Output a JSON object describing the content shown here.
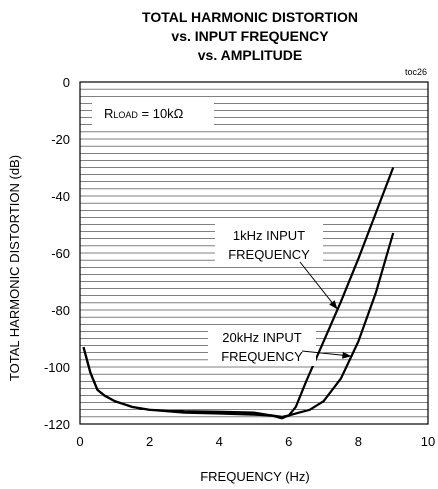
{
  "chart_data": {
    "type": "line",
    "title_lines": [
      "TOTAL HARMONIC DISTORTION",
      "vs. INPUT FREQUENCY",
      "vs. AMPLITUDE"
    ],
    "figure_id": "toc26",
    "xlabel": "FREQUENCY (Hz)",
    "ylabel": "TOTAL HARMONIC DISTORTION (dB)",
    "xlim": [
      0,
      10
    ],
    "ylim": [
      -120,
      0
    ],
    "x_ticks": [
      0,
      2,
      4,
      6,
      8,
      10
    ],
    "y_ticks": [
      0,
      -20,
      -40,
      -60,
      -80,
      -100,
      -120
    ],
    "grid": "horizontal",
    "legend_box": {
      "label_main": "R",
      "label_sub": "LOAD",
      "label_rest": " = 10kΩ"
    },
    "series": [
      {
        "name": "1kHz INPUT FREQUENCY",
        "x": [
          0.1,
          0.3,
          0.5,
          0.7,
          1.0,
          1.5,
          2.0,
          3.0,
          4.0,
          5.0,
          5.5,
          5.8,
          6.0,
          6.2,
          6.5,
          7.0,
          7.5,
          8.0,
          8.5,
          9.0
        ],
        "y": [
          -93,
          -102,
          -108,
          -110,
          -112,
          -114,
          -115,
          -115.5,
          -115.7,
          -116,
          -117,
          -118,
          -117,
          -114,
          -105,
          -91,
          -77,
          -62,
          -46,
          -30
        ]
      },
      {
        "name": "20kHz INPUT FREQUENCY",
        "x": [
          0.1,
          0.3,
          0.5,
          0.7,
          1.0,
          1.5,
          2.0,
          3.0,
          4.0,
          5.0,
          5.5,
          5.8,
          6.0,
          6.3,
          6.6,
          7.0,
          7.5,
          8.0,
          8.5,
          9.0
        ],
        "y": [
          -93,
          -102,
          -108,
          -110,
          -112,
          -114,
          -115,
          -116,
          -116.3,
          -116.7,
          -117,
          -117.5,
          -117,
          -116,
          -115,
          -112,
          -104,
          -91,
          -74,
          -53
        ]
      }
    ],
    "annotations": [
      {
        "lines": [
          "1kHz INPUT",
          "FREQUENCY"
        ],
        "target_series": 0,
        "target_x": 7.4
      },
      {
        "lines": [
          "20kHz INPUT",
          "FREQUENCY"
        ],
        "target_series": 1,
        "target_x": 7.8
      }
    ]
  }
}
